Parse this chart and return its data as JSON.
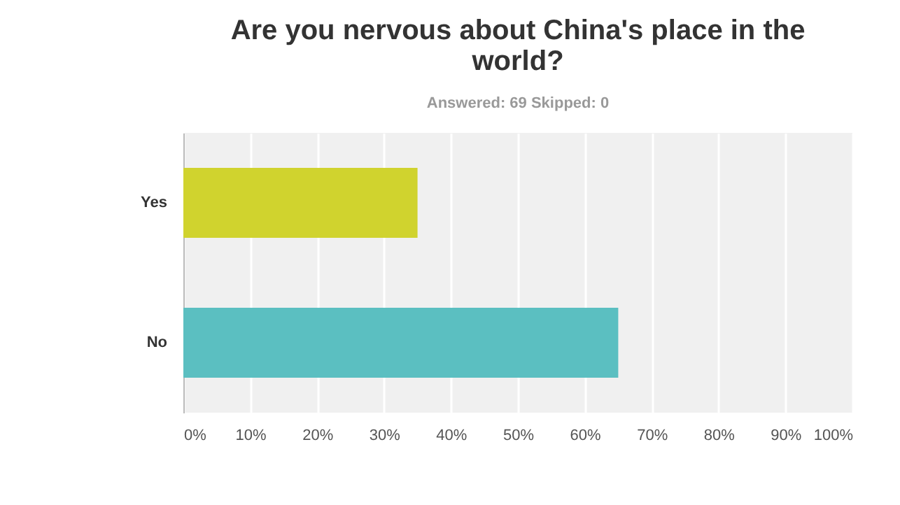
{
  "chart_data": {
    "type": "bar",
    "orientation": "horizontal",
    "title": "Are you nervous about China's place in the world?",
    "subtitle": "Answered: 69    Skipped: 0",
    "categories": [
      "Yes",
      "No"
    ],
    "values": [
      35,
      65
    ],
    "colors": [
      "#d0d32e",
      "#5bbfc1"
    ],
    "xlim": [
      0,
      100
    ],
    "xticks": [
      {
        "value": 0,
        "label": "0%"
      },
      {
        "value": 10,
        "label": "10%"
      },
      {
        "value": 20,
        "label": "20%"
      },
      {
        "value": 30,
        "label": "30%"
      },
      {
        "value": 40,
        "label": "40%"
      },
      {
        "value": 50,
        "label": "50%"
      },
      {
        "value": 60,
        "label": "60%"
      },
      {
        "value": 70,
        "label": "70%"
      },
      {
        "value": 80,
        "label": "80%"
      },
      {
        "value": 90,
        "label": "90%"
      },
      {
        "value": 100,
        "label": "100%"
      }
    ],
    "grid": "x"
  }
}
